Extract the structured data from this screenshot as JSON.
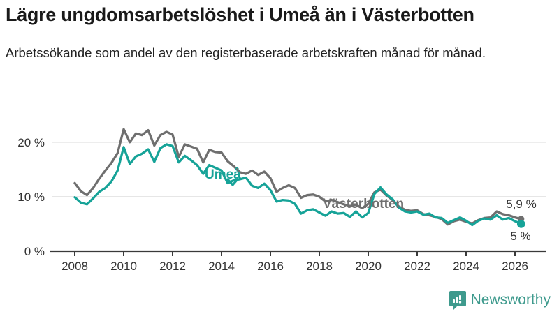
{
  "header": {
    "title": "Lägre ungdomsarbetslöshet i Umeå än i Västerbotten",
    "subtitle": "Arbetssökande som andel av den registerbaserade arbetskraften månad för månad."
  },
  "footer": {
    "brand": "Newsworthy"
  },
  "colors": {
    "umea_line": "#16a398",
    "vasterbotten_line": "#6f6f6f",
    "axis": "#3a3a3a",
    "axis_text": "#333333",
    "gridline": "#e2e2e2",
    "brand_teal": "#3e9a8d",
    "title_text": "#1a1a1a"
  },
  "chart_data": {
    "type": "line",
    "title": "Lägre ungdomsarbetslöshet i Umeå än i Västerbotten",
    "subtitle": "Arbetssökande som andel av den registerbaserade arbetskraften månad för månad.",
    "xlabel": "",
    "ylabel": "",
    "x_start_year": 2008.0,
    "x_step_years": 0.25,
    "x_tick_years": [
      2008,
      2010,
      2012,
      2014,
      2016,
      2018,
      2020,
      2022,
      2024,
      2026
    ],
    "y_ticks": [
      {
        "value": 0,
        "label": "0 %"
      },
      {
        "value": 10,
        "label": "10 %"
      },
      {
        "value": 20,
        "label": "20 %"
      }
    ],
    "ylim": [
      0,
      24
    ],
    "grid": "horizontal",
    "legend_position": "inline-labels-on-lines",
    "series": [
      {
        "name": "Västerbotten",
        "color": "#6f6f6f",
        "end_label": "5,9 %",
        "end_value": 5.9,
        "values": [
          12.5,
          11.0,
          10.3,
          11.6,
          13.3,
          14.8,
          16.2,
          18.0,
          22.4,
          20.0,
          21.6,
          21.3,
          22.2,
          19.4,
          21.3,
          21.9,
          21.4,
          17.3,
          19.6,
          19.2,
          18.8,
          16.3,
          18.6,
          18.2,
          18.1,
          16.5,
          15.6,
          14.5,
          14.2,
          14.8,
          14.0,
          14.6,
          13.4,
          10.9,
          11.6,
          12.1,
          11.6,
          9.8,
          10.3,
          10.4,
          10.0,
          9.1,
          9.4,
          9.0,
          8.6,
          8.3,
          8.5,
          7.9,
          8.7,
          10.8,
          11.3,
          10.2,
          9.4,
          8.2,
          7.6,
          7.4,
          7.5,
          6.8,
          6.6,
          6.3,
          5.9,
          4.9,
          5.5,
          5.8,
          5.4,
          5.1,
          5.7,
          6.1,
          6.2,
          7.3,
          6.8,
          6.6,
          6.2,
          5.9
        ]
      },
      {
        "name": "Umeå",
        "color": "#16a398",
        "end_label": "5 %",
        "end_value": 5.0,
        "values": [
          9.9,
          8.9,
          8.6,
          9.7,
          10.9,
          11.6,
          12.8,
          14.8,
          19.1,
          16.0,
          17.4,
          17.9,
          18.7,
          16.4,
          18.9,
          19.6,
          19.3,
          16.3,
          17.5,
          16.7,
          15.8,
          14.2,
          15.8,
          15.3,
          14.8,
          12.5,
          13.0,
          13.2,
          13.5,
          12.0,
          11.6,
          12.4,
          11.2,
          9.1,
          9.4,
          9.3,
          8.7,
          6.9,
          7.5,
          7.7,
          7.1,
          6.5,
          7.3,
          6.9,
          7.0,
          6.3,
          7.3,
          6.2,
          7.0,
          10.5,
          11.7,
          10.4,
          9.5,
          8.0,
          7.3,
          7.1,
          7.3,
          6.7,
          6.9,
          6.2,
          6.1,
          5.2,
          5.7,
          6.2,
          5.6,
          4.8,
          5.6,
          6.0,
          5.8,
          6.6,
          5.8,
          6.1,
          5.5,
          5.0
        ]
      }
    ]
  }
}
